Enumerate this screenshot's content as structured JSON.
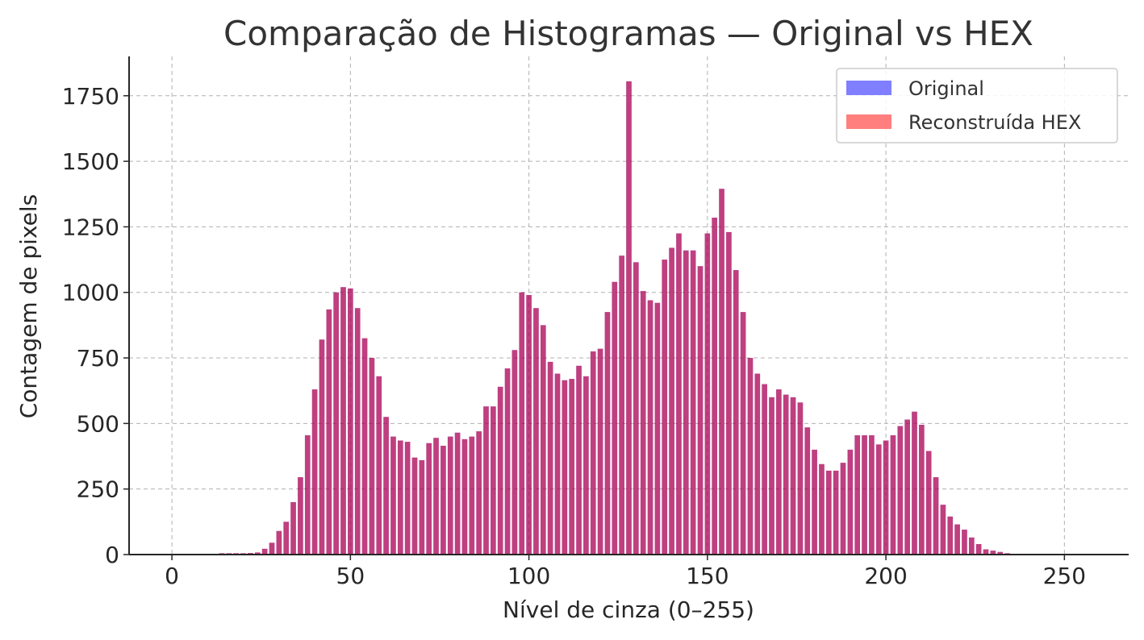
{
  "chart_data": {
    "type": "bar",
    "title": "Comparação de Histogramas — Original vs HEX",
    "xlabel": "Nível de cinza (0–255)",
    "ylabel": "Contagem de pixels",
    "xlim": [
      -12,
      268
    ],
    "ylim": [
      0,
      1900
    ],
    "xticks": [
      0,
      50,
      100,
      150,
      200,
      250
    ],
    "yticks": [
      0,
      250,
      500,
      750,
      1000,
      1250,
      1500,
      1750
    ],
    "grid": true,
    "legend_position": "top-right",
    "bin_width": 1.5,
    "x": [
      14,
      16,
      18,
      20,
      22,
      24,
      26,
      28,
      30,
      32,
      34,
      36,
      38,
      40,
      42,
      44,
      46,
      48,
      50,
      52,
      54,
      56,
      58,
      60,
      62,
      64,
      66,
      68,
      70,
      72,
      74,
      76,
      78,
      80,
      82,
      84,
      86,
      88,
      90,
      92,
      94,
      96,
      98,
      100,
      102,
      104,
      106,
      108,
      110,
      112,
      114,
      116,
      118,
      120,
      122,
      124,
      126,
      128,
      130,
      132,
      134,
      136,
      138,
      140,
      142,
      144,
      146,
      148,
      150,
      152,
      154,
      156,
      158,
      160,
      162,
      164,
      166,
      168,
      170,
      172,
      174,
      176,
      178,
      180,
      182,
      184,
      186,
      188,
      190,
      192,
      194,
      196,
      198,
      200,
      202,
      204,
      206,
      208,
      210,
      212,
      214,
      216,
      218,
      220,
      222,
      224,
      226,
      228,
      230,
      232,
      234
    ],
    "series": [
      {
        "name": "Original",
        "color": "#0000ff",
        "opacity": 0.5,
        "values": [
          5,
          5,
          5,
          5,
          6,
          8,
          22,
          45,
          90,
          125,
          200,
          295,
          455,
          630,
          820,
          935,
          1000,
          1020,
          1015,
          940,
          825,
          750,
          680,
          525,
          450,
          435,
          430,
          370,
          360,
          425,
          445,
          415,
          450,
          465,
          440,
          450,
          470,
          565,
          565,
          640,
          710,
          780,
          1000,
          990,
          940,
          875,
          735,
          690,
          665,
          670,
          720,
          680,
          775,
          785,
          925,
          1040,
          1140,
          1805,
          1115,
          1005,
          970,
          960,
          1125,
          1170,
          1225,
          1160,
          1160,
          1100,
          1225,
          1285,
          1395,
          1230,
          1085,
          925,
          750,
          690,
          650,
          600,
          630,
          610,
          600,
          580,
          485,
          400,
          345,
          320,
          320,
          350,
          400,
          455,
          455,
          455,
          420,
          435,
          455,
          490,
          515,
          545,
          495,
          395,
          295,
          190,
          145,
          115,
          95,
          65,
          40,
          20,
          15,
          10,
          5
        ]
      },
      {
        "name": "Reconstruída HEX",
        "color": "#ff0000",
        "opacity": 0.5,
        "values": [
          5,
          5,
          5,
          5,
          6,
          8,
          22,
          45,
          90,
          125,
          200,
          295,
          455,
          630,
          820,
          935,
          1000,
          1020,
          1015,
          940,
          825,
          750,
          680,
          525,
          450,
          435,
          430,
          370,
          360,
          425,
          445,
          415,
          450,
          465,
          440,
          450,
          470,
          565,
          565,
          640,
          710,
          780,
          1000,
          990,
          940,
          875,
          735,
          690,
          665,
          670,
          720,
          680,
          775,
          785,
          925,
          1040,
          1140,
          1805,
          1115,
          1005,
          970,
          960,
          1125,
          1170,
          1225,
          1160,
          1160,
          1100,
          1225,
          1285,
          1395,
          1230,
          1085,
          925,
          750,
          690,
          650,
          600,
          630,
          610,
          600,
          580,
          485,
          400,
          345,
          320,
          320,
          350,
          400,
          455,
          455,
          455,
          420,
          435,
          455,
          490,
          515,
          545,
          495,
          395,
          295,
          190,
          145,
          115,
          95,
          65,
          40,
          20,
          15,
          10,
          5
        ]
      }
    ]
  }
}
